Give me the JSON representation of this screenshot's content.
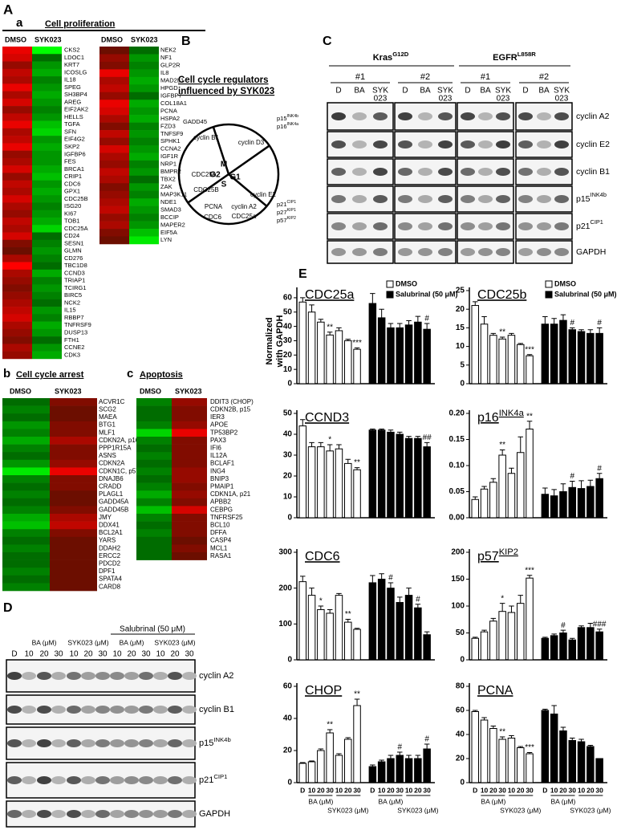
{
  "panel_A": {
    "label": "A",
    "sublabel": "a",
    "title": "Cell proliferation",
    "columns": [
      "DMSO",
      "SYK023"
    ],
    "left": {
      "genes": [
        "CKS2",
        "LDOC1",
        "KRT7",
        "ICOSLG",
        "IL18",
        "SPEG",
        "SH3BP4",
        "AREG",
        "EIF2AK2",
        "HELLS",
        "TGFA",
        "SFN",
        "EIF4G2",
        "SKP2",
        "IGFBP6",
        "FES",
        "BRCA1",
        "CRIP1",
        "CDC6",
        "GPX1",
        "CDC25B",
        "ISG20",
        "KI67",
        "TOB1",
        "CDC25A",
        "CD24",
        "SESN1",
        "GLMN",
        "CD276",
        "TBC1D8",
        "CCND3",
        "TRIAP1",
        "TCIRG1",
        "BIRC5",
        "NCK2",
        "IL15",
        "RBBP7",
        "TNFRSF9",
        "DUSP13",
        "FTH1",
        "CCNE2",
        "CDK3"
      ],
      "dmso_values": [
        0.9,
        0.8,
        0.5,
        0.7,
        0.6,
        0.9,
        0.6,
        0.8,
        0.5,
        0.7,
        0.9,
        0.6,
        0.7,
        0.9,
        0.5,
        0.6,
        0.8,
        0.5,
        0.7,
        0.6,
        0.8,
        0.6,
        0.5,
        0.7,
        0.6,
        0.8,
        0.4,
        0.3,
        0.6,
        1.0,
        0.6,
        0.5,
        0.4,
        0.5,
        0.6,
        0.7,
        0.8,
        0.6,
        0.5,
        0.4,
        0.6,
        0.5
      ],
      "syk023_values": [
        -1.0,
        -0.3,
        -0.5,
        -0.6,
        -0.4,
        -0.5,
        -0.6,
        -0.5,
        -0.4,
        -0.5,
        -0.7,
        -0.8,
        -0.5,
        -0.6,
        -0.5,
        -0.5,
        -0.6,
        -0.7,
        -0.5,
        -0.6,
        -0.5,
        -0.4,
        -0.5,
        -0.6,
        -0.8,
        -0.3,
        -0.4,
        -0.5,
        -0.4,
        -0.3,
        -0.6,
        -0.4,
        -0.5,
        -0.4,
        -0.3,
        -0.5,
        -0.4,
        -0.6,
        -0.5,
        -0.3,
        -0.5,
        -0.6
      ]
    },
    "right": {
      "genes": [
        "NEK2",
        "NF1",
        "GLP2R",
        "IL8",
        "MAD2L1",
        "HPGD",
        "IGFBP7",
        "COL18A1",
        "PCNA",
        "HSPA2",
        "FZD3",
        "TNFSF9",
        "SPHK1",
        "CCNA2",
        "IGF1R",
        "NRP1",
        "BMPR2",
        "TBX2",
        "ZAK",
        "MAP3K11",
        "NDE1",
        "SMAD3",
        "BCCIP",
        "MAPER2",
        "EIF5A",
        "LYN"
      ],
      "dmso_values": [
        0.3,
        0.5,
        0.4,
        0.9,
        0.6,
        0.7,
        0.5,
        0.9,
        0.8,
        0.6,
        0.4,
        0.7,
        0.5,
        0.8,
        0.6,
        0.5,
        0.7,
        0.6,
        0.4,
        0.5,
        0.6,
        0.7,
        0.5,
        0.6,
        0.4,
        0.3
      ],
      "syk023_values": [
        -0.3,
        -0.5,
        -0.4,
        -0.5,
        -0.6,
        -0.5,
        -0.3,
        -0.6,
        -0.5,
        -0.6,
        -0.4,
        -0.5,
        -0.4,
        -0.5,
        -0.6,
        -0.4,
        -0.5,
        -0.3,
        -0.5,
        -0.4,
        -0.6,
        -0.5,
        -0.4,
        -0.5,
        -0.7,
        -0.9
      ]
    }
  },
  "panel_A_b": {
    "label": "b",
    "title": "Cell cycle arrest",
    "columns": [
      "DMSO",
      "SYK023"
    ],
    "genes": [
      "ACVR1C",
      "SCG2",
      "MAEA",
      "BTG1",
      "MLF1",
      "CDKN2A, p16",
      "PPP1R15A",
      "ASNS",
      "CDKN2A",
      "CDKN1C, p57",
      "DNAJB6",
      "CRADD",
      "PLAGL1",
      "GADD45A",
      "GADD45B",
      "JMY",
      "DDX41",
      "BCL2A1",
      "YARS",
      "DDAH2",
      "ERCC2",
      "PDCD2",
      "DPF1",
      "SPATA4",
      "CARD8"
    ],
    "dmso_values": [
      -0.3,
      -0.4,
      -0.3,
      -0.5,
      -0.4,
      -0.6,
      -0.4,
      -0.3,
      -0.5,
      -0.9,
      -0.4,
      -0.3,
      -0.4,
      -0.3,
      -0.4,
      -0.6,
      -0.7,
      -0.4,
      -0.3,
      -0.4,
      -0.3,
      -0.3,
      -0.4,
      -0.3,
      -0.4
    ],
    "syk023_values": [
      0.4,
      0.3,
      0.3,
      0.4,
      0.4,
      0.6,
      0.4,
      0.4,
      0.5,
      0.9,
      0.4,
      0.4,
      0.3,
      0.3,
      0.4,
      0.6,
      0.7,
      0.4,
      0.3,
      0.3,
      0.3,
      0.3,
      0.3,
      0.3,
      0.3
    ]
  },
  "panel_A_c": {
    "label": "c",
    "title": "Apoptosis",
    "columns": [
      "DMSO",
      "SYK023"
    ],
    "genes": [
      "DDIT3 (CHOP)",
      "CDKN2B, p15",
      "IER3",
      "APOE",
      "TP53BP2",
      "PAX3",
      "IFI6",
      "IL12A",
      "BCLAF1",
      "ING4",
      "BNIP3",
      "PMAIP1",
      "CDKN1A, p21",
      "APBB2",
      "CEBPG",
      "TNFRSF25",
      "BCL10",
      "DFFA",
      "CASP4",
      "MCL1",
      "RASA1"
    ],
    "dmso_values": [
      -0.4,
      -0.3,
      -0.3,
      -0.4,
      -0.8,
      -0.4,
      -0.3,
      -0.4,
      -0.3,
      -0.4,
      -0.3,
      -0.4,
      -0.6,
      -0.4,
      -0.7,
      -0.4,
      -0.3,
      -0.4,
      -0.3,
      -0.3,
      -0.3
    ],
    "syk023_values": [
      0.5,
      0.4,
      0.4,
      0.5,
      0.9,
      0.4,
      0.4,
      0.4,
      0.4,
      0.5,
      0.5,
      0.4,
      0.5,
      0.4,
      0.8,
      0.4,
      0.4,
      0.4,
      0.3,
      0.4,
      0.3
    ]
  },
  "panel_B": {
    "label": "B",
    "title_lines": [
      "Cell cycle regulators",
      "influenced by SYK023"
    ],
    "phases": [
      "G2",
      "M",
      "S",
      "G1"
    ],
    "promoters": [
      "cyclin B1",
      "cyclin D3",
      "CDC25b",
      "CDC25B",
      "PCNA",
      "CDC6",
      "cyclin E2",
      "cyclin A2",
      "CDC25a"
    ],
    "inhibitors": [
      "GADD45",
      {
        "base": "p15",
        "sup": "INK4b"
      },
      {
        "base": "p16",
        "sup": "INK4a"
      },
      {
        "base": "p21",
        "sup": "CIP1"
      },
      {
        "base": "p27",
        "sup": "KIP1"
      },
      {
        "base": "p57",
        "sup": "KIP2"
      }
    ]
  },
  "panel_C": {
    "label": "C",
    "groups": [
      {
        "base": "Kras",
        "sup": "G12D"
      },
      {
        "base": "EGFR",
        "sup": "L858R"
      }
    ],
    "clones": [
      "#1",
      "#2",
      "#1",
      "#2"
    ],
    "lanes": [
      [
        "D"
      ],
      [
        "BA"
      ],
      [
        "SYK",
        "023"
      ]
    ],
    "rows": [
      "cyclin A2",
      "cyclin E2",
      "cyclin B1",
      {
        "base": "p15",
        "sup": "INK4b"
      },
      {
        "base": "p21",
        "sup": "CIP1"
      },
      "GAPDH"
    ]
  },
  "panel_D": {
    "label": "D",
    "treatment": "Salubrinal (50 μM)",
    "groups": [
      "BA (μM)",
      "SYK023 (μM)"
    ],
    "lanes": [
      "D",
      "10",
      "20",
      "30",
      "10",
      "20",
      "30",
      "10",
      "20",
      "30",
      "10",
      "20",
      "30"
    ],
    "rows": [
      "cyclin A2",
      "cyclin B1",
      {
        "base": "p15",
        "sup": "INK4b"
      },
      {
        "base": "p21",
        "sup": "CIP1"
      },
      "GAPDH"
    ]
  },
  "panel_E": {
    "label": "E",
    "y_label": [
      "Normalized",
      "with GAPDH"
    ],
    "legend": [
      "DMSO",
      "Salubrinal (50 μM)"
    ],
    "x_labels": [
      "D",
      "10",
      "20",
      "30",
      "10",
      "20",
      "30",
      "D",
      "10",
      "20",
      "30",
      "10",
      "20",
      "30"
    ],
    "x_groups": [
      "BA (μM)",
      "SYK023 (μM)"
    ]
  },
  "chart_data": [
    {
      "type": "bar",
      "title": "CDC25a",
      "ylim": [
        0,
        65
      ],
      "yticks": [
        0,
        10,
        20,
        30,
        40,
        50,
        60
      ],
      "series": [
        {
          "color": "#ffffff",
          "values": [
            57,
            50,
            43,
            34,
            37,
            30,
            24
          ],
          "errors": [
            3,
            5,
            2,
            2,
            2,
            1,
            1
          ],
          "significance": [
            null,
            null,
            null,
            "**",
            null,
            null,
            "***"
          ]
        },
        {
          "color": "#000000",
          "values": [
            56,
            46,
            39,
            39,
            41,
            43,
            38
          ],
          "errors": [
            7,
            6,
            3,
            3,
            3,
            4,
            4
          ],
          "significance": [
            null,
            null,
            null,
            null,
            null,
            null,
            "#"
          ]
        }
      ]
    },
    {
      "type": "bar",
      "title": "CDC25b",
      "ylim": [
        0,
        25
      ],
      "yticks": [
        0,
        5,
        10,
        15,
        20,
        25
      ],
      "series": [
        {
          "color": "#ffffff",
          "values": [
            21,
            16,
            13,
            12,
            13,
            10.5,
            7.5
          ],
          "errors": [
            1,
            2,
            0.5,
            0.5,
            0.5,
            0.3,
            0.3
          ],
          "significance": [
            null,
            null,
            null,
            "**",
            null,
            null,
            "***"
          ]
        },
        {
          "color": "#000000",
          "values": [
            16,
            16,
            17,
            14.5,
            14,
            13.5,
            13.5
          ],
          "errors": [
            2,
            1.5,
            1.5,
            0.5,
            0.5,
            1,
            1.5
          ],
          "significance": [
            null,
            null,
            null,
            "#",
            null,
            null,
            "#"
          ]
        }
      ]
    },
    {
      "type": "bar",
      "title": "CCND3",
      "ylim": [
        0,
        50
      ],
      "yticks": [
        0,
        10,
        20,
        30,
        40,
        50
      ],
      "series": [
        {
          "color": "#ffffff",
          "values": [
            44,
            34,
            34,
            32,
            33,
            26,
            23
          ],
          "errors": [
            3,
            2,
            2,
            3,
            2,
            2,
            1
          ],
          "significance": [
            null,
            null,
            null,
            "*",
            null,
            null,
            "**"
          ]
        },
        {
          "color": "#000000",
          "values": [
            42,
            42,
            41,
            40,
            38,
            38,
            34
          ],
          "errors": [
            0.5,
            0.5,
            1,
            1,
            1,
            1,
            2
          ],
          "significance": [
            null,
            null,
            null,
            null,
            null,
            null,
            "##"
          ]
        }
      ]
    },
    {
      "type": "bar",
      "title": {
        "base": "p16",
        "sup": "INK4a"
      },
      "ylim": [
        0,
        0.2
      ],
      "yticks": [
        {
          "value": 0,
          "label": "0.00"
        },
        0.05,
        {
          "value": 0.1,
          "label": "0.10"
        },
        0.15,
        {
          "value": 0.2,
          "label": "0.20"
        }
      ],
      "series": [
        {
          "color": "#ffffff",
          "values": [
            0.035,
            0.055,
            0.068,
            0.12,
            0.085,
            0.125,
            0.17
          ],
          "errors": [
            0.005,
            0.005,
            0.007,
            0.01,
            0.01,
            0.03,
            0.015
          ],
          "significance": [
            null,
            null,
            null,
            "**",
            null,
            null,
            "**"
          ]
        },
        {
          "color": "#000000",
          "values": [
            0.045,
            0.042,
            0.05,
            0.058,
            0.056,
            0.06,
            0.075
          ],
          "errors": [
            0.012,
            0.012,
            0.015,
            0.012,
            0.015,
            0.012,
            0.01
          ],
          "significance": [
            null,
            null,
            null,
            "#",
            null,
            null,
            "#"
          ]
        }
      ]
    },
    {
      "type": "bar",
      "title": "CDC6",
      "ylim": [
        0,
        300
      ],
      "yticks": [
        0,
        100,
        200,
        300
      ],
      "series": [
        {
          "color": "#ffffff",
          "values": [
            218,
            180,
            140,
            130,
            180,
            105,
            85
          ],
          "errors": [
            15,
            20,
            10,
            10,
            5,
            8,
            3
          ],
          "significance": [
            null,
            null,
            "*",
            null,
            null,
            "**",
            null
          ]
        },
        {
          "color": "#000000",
          "values": [
            215,
            225,
            200,
            160,
            180,
            145,
            70
          ],
          "errors": [
            20,
            15,
            15,
            15,
            20,
            10,
            8
          ],
          "significance": [
            null,
            null,
            "#",
            null,
            null,
            "#",
            null
          ]
        }
      ]
    },
    {
      "type": "bar",
      "title": {
        "base": "p57",
        "sup": "KIP2"
      },
      "ylim": [
        0,
        200
      ],
      "yticks": [
        0,
        50,
        100,
        150,
        200
      ],
      "series": [
        {
          "color": "#ffffff",
          "values": [
            40,
            52,
            72,
            90,
            88,
            105,
            152
          ],
          "errors": [
            2,
            3,
            5,
            15,
            12,
            15,
            5
          ],
          "significance": [
            null,
            null,
            null,
            "*",
            null,
            null,
            "***"
          ]
        },
        {
          "color": "#000000",
          "values": [
            40,
            45,
            50,
            37,
            60,
            60,
            52
          ],
          "errors": [
            2,
            3,
            5,
            3,
            3,
            8,
            5
          ],
          "significance": [
            null,
            null,
            "#",
            null,
            null,
            null,
            "###"
          ]
        }
      ]
    },
    {
      "type": "bar",
      "title": "CHOP",
      "ylim": [
        0,
        60
      ],
      "yticks": [
        0,
        20,
        40,
        60
      ],
      "series": [
        {
          "color": "#ffffff",
          "values": [
            12,
            13,
            20,
            31,
            17,
            27,
            48
          ],
          "errors": [
            0.5,
            0.5,
            1,
            2,
            1,
            1,
            4
          ],
          "significance": [
            null,
            null,
            null,
            "**",
            null,
            null,
            "**"
          ]
        },
        {
          "color": "#000000",
          "values": [
            10,
            13,
            15,
            17,
            15,
            15,
            21
          ],
          "errors": [
            1,
            1,
            2,
            2,
            2,
            2,
            3
          ],
          "significance": [
            null,
            null,
            null,
            "#",
            null,
            null,
            "#"
          ]
        }
      ]
    },
    {
      "type": "bar",
      "title": "PCNA",
      "ylim": [
        0,
        80
      ],
      "yticks": [
        0,
        20,
        40,
        60,
        80
      ],
      "series": [
        {
          "color": "#ffffff",
          "values": [
            59,
            52,
            45,
            36,
            37,
            29,
            24
          ],
          "errors": [
            1,
            2,
            2,
            2,
            2,
            1,
            1
          ],
          "significance": [
            null,
            null,
            null,
            "**",
            null,
            null,
            "***"
          ]
        },
        {
          "color": "#000000",
          "values": [
            60,
            57,
            43,
            35,
            34,
            30,
            20
          ],
          "errors": [
            1,
            7,
            3,
            2,
            2,
            1,
            0
          ],
          "significance": [
            null,
            null,
            null,
            null,
            null,
            null,
            null
          ]
        }
      ]
    }
  ]
}
